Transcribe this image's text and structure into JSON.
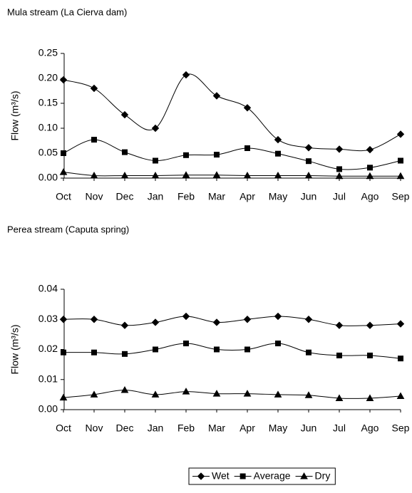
{
  "chart_data": [
    {
      "type": "line",
      "title": "Mula stream (La Cierva dam)",
      "y_label": "Flow (m³/s)",
      "categories": [
        "Oct",
        "Nov",
        "Dec",
        "Jan",
        "Feb",
        "Mar",
        "Apr",
        "May",
        "Jun",
        "Jul",
        "Ago",
        "Sep"
      ],
      "ylim": [
        0,
        0.25
      ],
      "yticks": [
        {
          "value": 0,
          "label": "0.00"
        },
        0.05,
        {
          "value": 0.1,
          "label": "0.10"
        },
        0.15,
        {
          "value": 0.2,
          "label": "0.20"
        },
        0.25
      ],
      "smooth": true,
      "series": [
        {
          "name": "Wet",
          "color": "#000000",
          "marker": "diamond",
          "values": [
            0.197,
            0.18,
            0.127,
            0.1,
            0.207,
            0.165,
            0.141,
            0.077,
            0.061,
            0.058,
            0.057,
            0.088
          ]
        },
        {
          "name": "Average",
          "color": "#000000",
          "marker": "square",
          "values": [
            0.05,
            0.077,
            0.052,
            0.035,
            0.046,
            0.047,
            0.06,
            0.049,
            0.034,
            0.018,
            0.021,
            0.035
          ]
        },
        {
          "name": "Dry",
          "color": "#000000",
          "marker": "triangle",
          "values": [
            0.012,
            0.005,
            0.005,
            0.005,
            0.006,
            0.006,
            0.005,
            0.005,
            0.005,
            0.004,
            0.004,
            0.004
          ]
        }
      ]
    },
    {
      "type": "line",
      "title": "Perea stream (Caputa spring)",
      "y_label": "Flow (m³/s)",
      "categories": [
        "Oct",
        "Nov",
        "Dec",
        "Jan",
        "Feb",
        "Mar",
        "Apr",
        "May",
        "Jun",
        "Jul",
        "Ago",
        "Sep"
      ],
      "ylim": [
        0,
        0.04
      ],
      "yticks": [
        {
          "value": 0,
          "label": "0.00"
        },
        0.01,
        0.02,
        0.03,
        0.04
      ],
      "smooth": true,
      "series": [
        {
          "name": "Wet",
          "color": "#000000",
          "marker": "diamond",
          "values": [
            0.03,
            0.03,
            0.028,
            0.029,
            0.031,
            0.029,
            0.03,
            0.031,
            0.03,
            0.028,
            0.028,
            0.0285
          ]
        },
        {
          "name": "Average",
          "color": "#000000",
          "marker": "square",
          "values": [
            0.019,
            0.019,
            0.0185,
            0.02,
            0.022,
            0.02,
            0.02,
            0.022,
            0.019,
            0.018,
            0.018,
            0.017
          ]
        },
        {
          "name": "Dry",
          "color": "#000000",
          "marker": "triangle",
          "values": [
            0.004,
            0.005,
            0.0065,
            0.005,
            0.006,
            0.0053,
            0.0053,
            0.005,
            0.0048,
            0.0038,
            0.0038,
            0.0045
          ]
        }
      ]
    }
  ]
}
